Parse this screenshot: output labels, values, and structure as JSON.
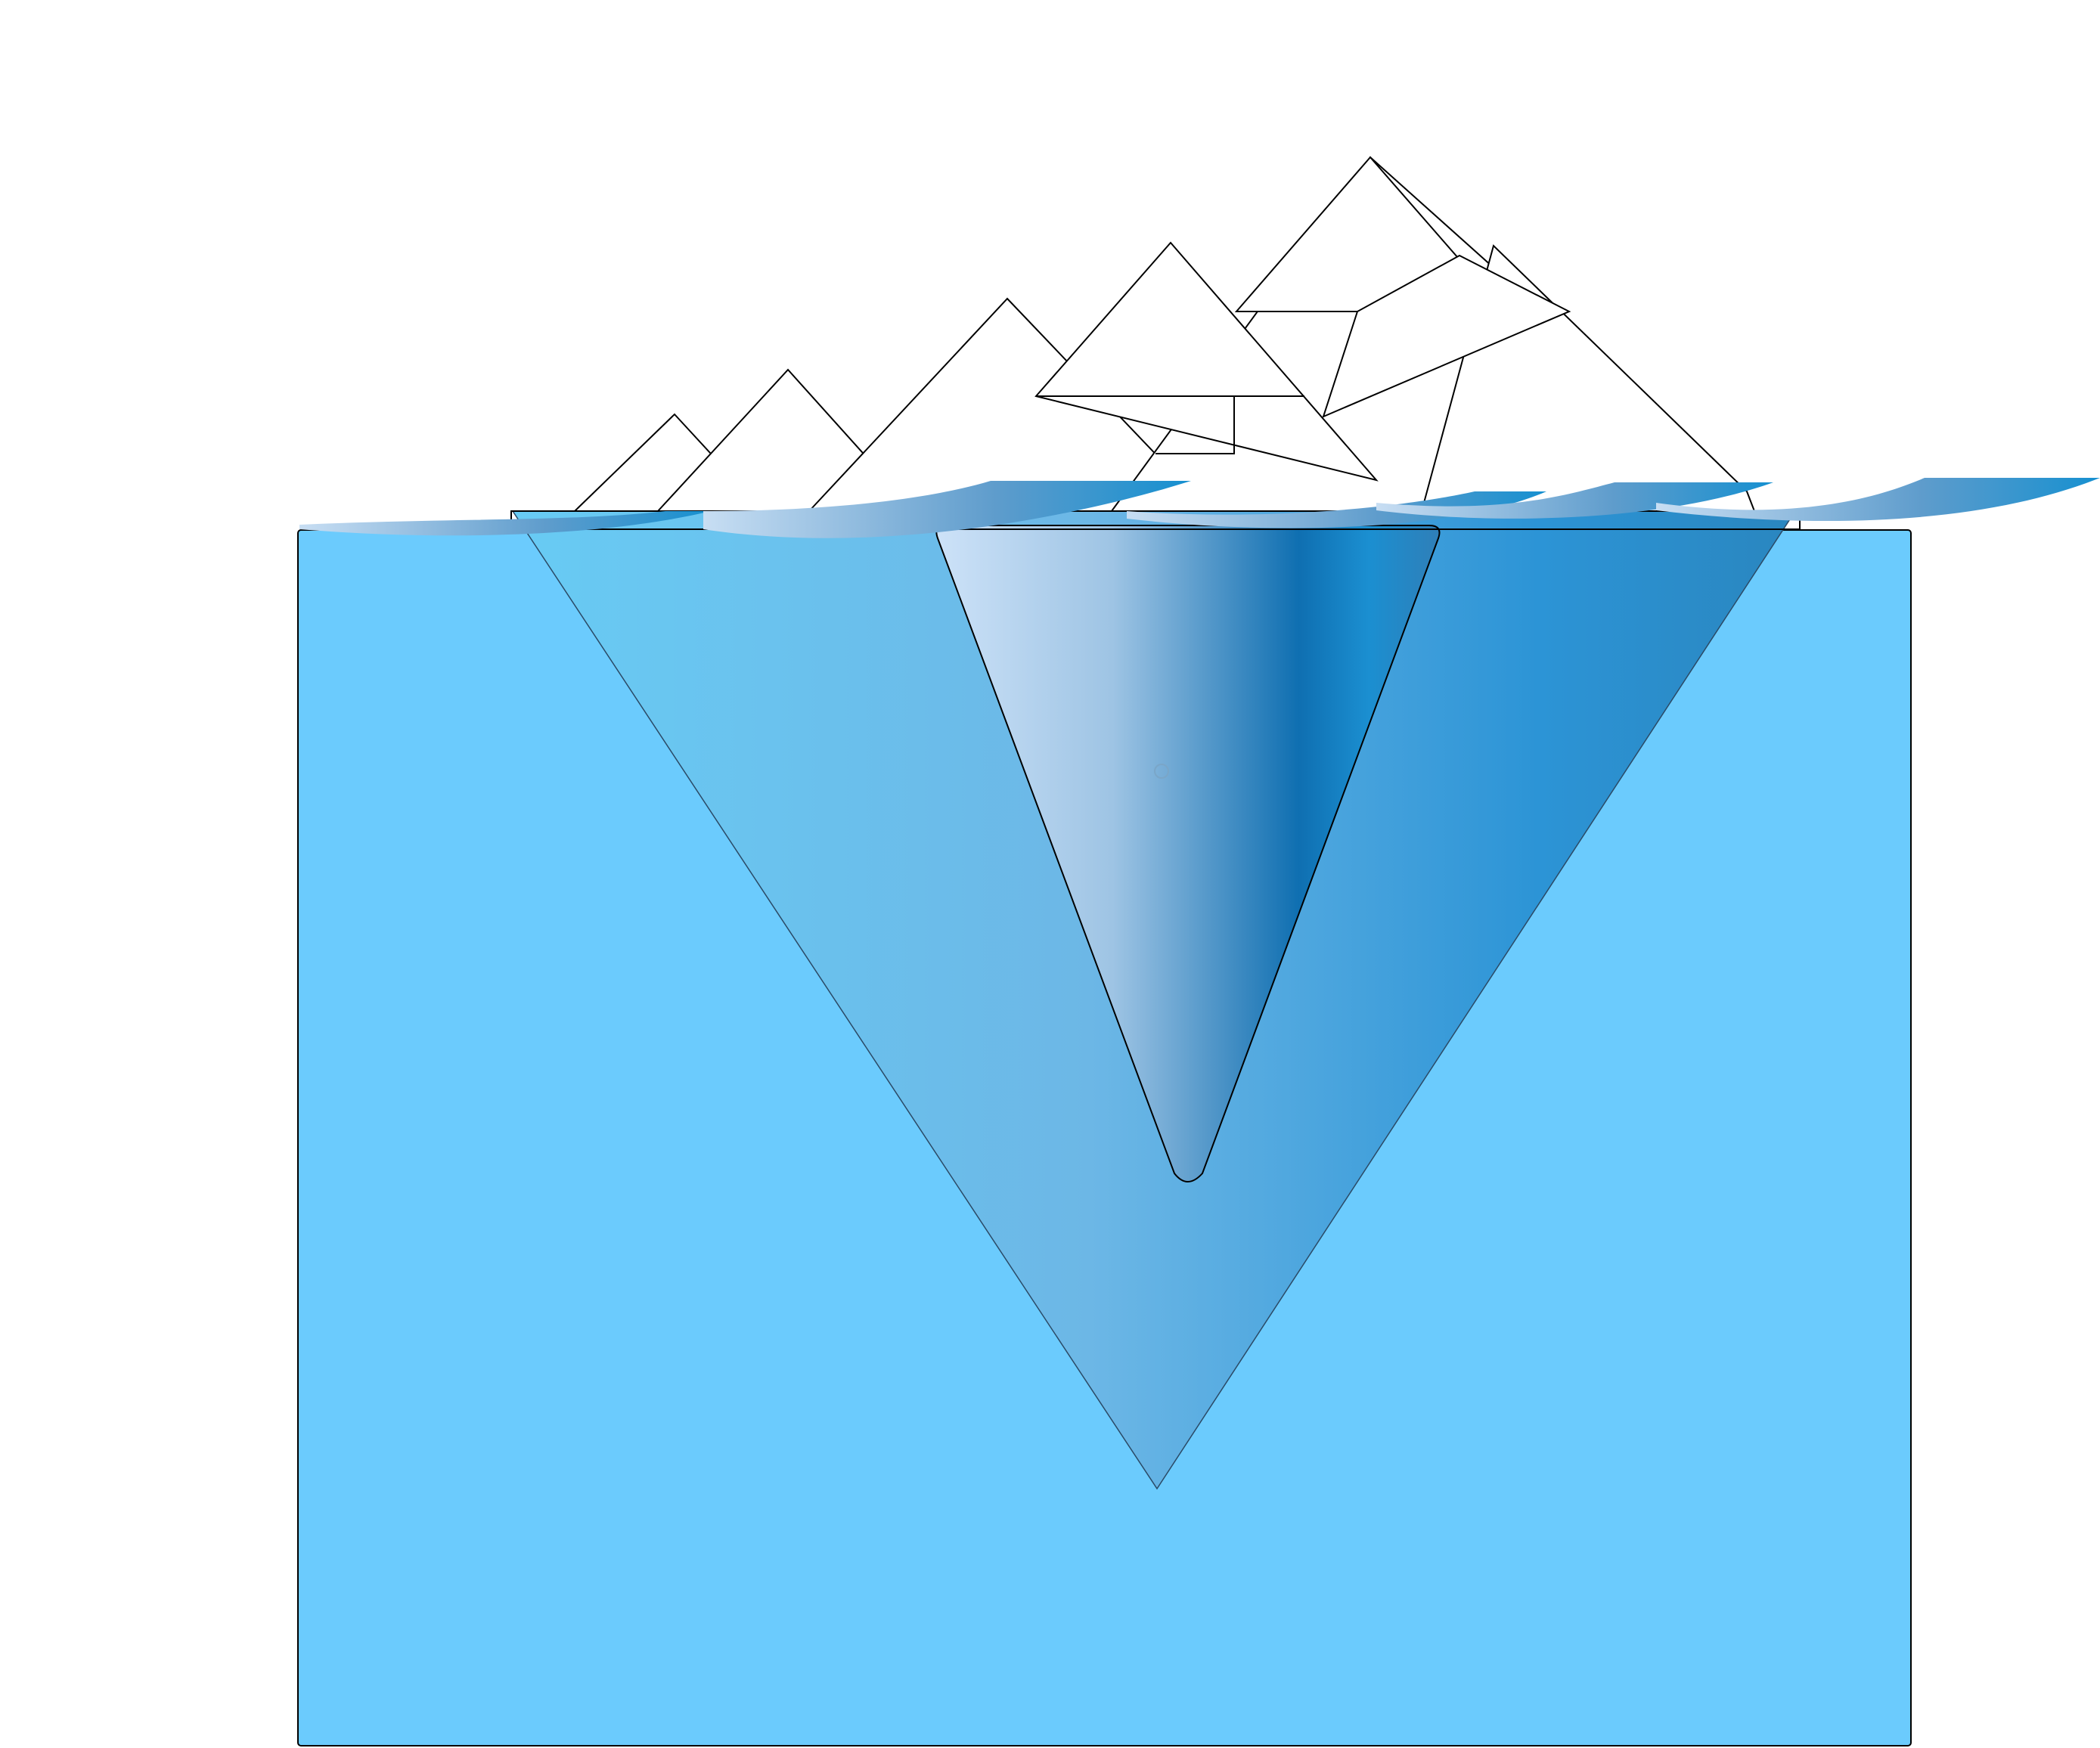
{
  "diagram": {
    "title": "",
    "labels": [],
    "colors": {
      "background": "#ffffff",
      "water": "#6bcbfd",
      "iceberg_outline": "#000000",
      "iceberg_above": "#ffffff",
      "submerged_light": "#68cbf4",
      "submerged_mid": "#6cb7e6",
      "submerged_deep": "#2c94d6",
      "inner_core_light": "#cde2f8",
      "inner_core_dark": "#0f6fb1",
      "wave_light": "#c8def3",
      "wave_dark": "#1690d0"
    },
    "parts": [
      "water-body",
      "submerged-iceberg",
      "inner-core",
      "iceberg-peaks",
      "waves"
    ]
  }
}
